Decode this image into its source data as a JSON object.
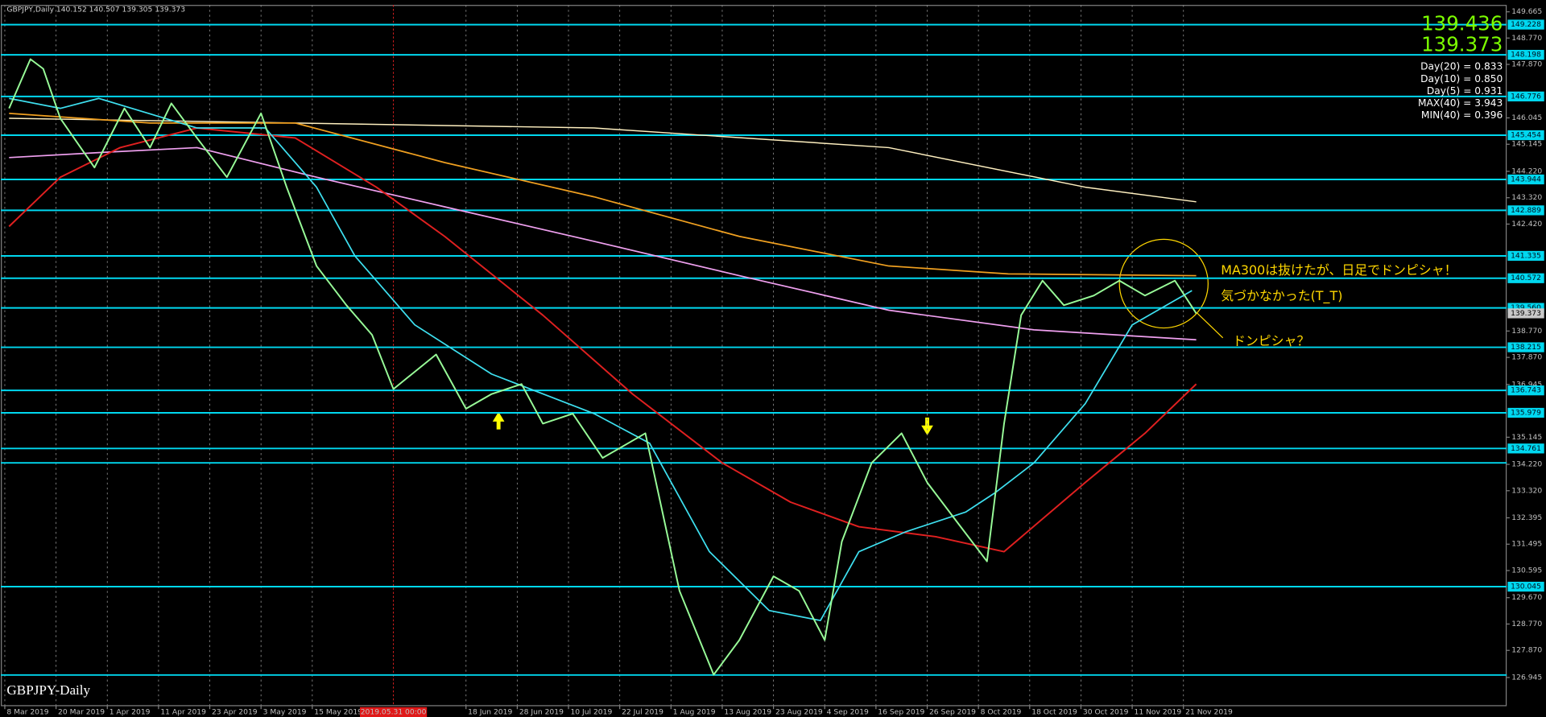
{
  "chart_data": {
    "type": "line",
    "header": "GBPJPY,Daily  140.152 140.507 139.305 139.373",
    "watermark": "GBPJPY-Daily",
    "quotes": [
      139.436,
      139.373
    ],
    "info": [
      "Day(20) = 0.833",
      "Day(10) = 0.850",
      "Day(5) = 0.931",
      "MAX(40) = 3.943",
      "MIN(40) = 0.396"
    ],
    "annotations": [
      "MA300は抜けたが、日足でドンピシャ！",
      "気づかなかった(T_T)",
      "ドンピシャ？"
    ],
    "marker_label": "2019.05.31 00:00",
    "marker_x": 91,
    "grid": true,
    "xlim": [
      0,
      351.7
    ],
    "xticks": [
      {
        "value": 0,
        "label": "8 Mar 2019"
      },
      {
        "value": 12,
        "label": "20 Mar 2019"
      },
      {
        "value": 24,
        "label": "1 Apr 2019"
      },
      {
        "value": 36,
        "label": "11 Apr 2019"
      },
      {
        "value": 48,
        "label": "23 Apr 2019"
      },
      {
        "value": 60,
        "label": "3 May 2019"
      },
      {
        "value": 72,
        "label": "15 May 2019"
      },
      {
        "value": 108,
        "label": "18 Jun 2019"
      },
      {
        "value": 120,
        "label": "28 Jun 2019"
      },
      {
        "value": 132,
        "label": "10 Jul 2019"
      },
      {
        "value": 144,
        "label": "22 Jul 2019"
      },
      {
        "value": 156,
        "label": "1 Aug 2019"
      },
      {
        "value": 168,
        "label": "13 Aug 2019"
      },
      {
        "value": 180,
        "label": "23 Aug 2019"
      },
      {
        "value": 192,
        "label": "4 Sep 2019"
      },
      {
        "value": 204,
        "label": "16 Sep 2019"
      },
      {
        "value": 216,
        "label": "26 Sep 2019"
      },
      {
        "value": 228,
        "label": "8 Oct 2019"
      },
      {
        "value": 240,
        "label": "18 Oct 2019"
      },
      {
        "value": 252,
        "label": "30 Oct 2019"
      },
      {
        "value": 264,
        "label": "11 Nov 2019"
      },
      {
        "value": 276,
        "label": "21 Nov 2019"
      }
    ],
    "ylim": [
      126.0,
      149.9
    ],
    "yticks": [
      126.945,
      {
        "value": 127.87,
        "label": "127.870"
      },
      {
        "value": 128.77,
        "label": "128.770"
      },
      {
        "value": 129.67,
        "label": "129.670"
      },
      130.595,
      131.495,
      132.395,
      {
        "value": 133.32,
        "label": "133.320"
      },
      {
        "value": 134.22,
        "label": "134.220"
      },
      135.145,
      136.945,
      {
        "value": 137.87,
        "label": "137.870"
      },
      {
        "value": 138.77,
        "label": "138.770"
      },
      {
        "value": 142.42,
        "label": "142.420"
      },
      {
        "value": 143.32,
        "label": "143.320"
      },
      {
        "value": 144.22,
        "label": "144.220"
      },
      145.145,
      146.045,
      {
        "value": 147.87,
        "label": "147.870"
      },
      {
        "value": 148.77,
        "label": "148.770"
      },
      149.665
    ],
    "levels": [
      149.228,
      148.198,
      146.776,
      145.454,
      143.944,
      142.889,
      141.335,
      140.572,
      {
        "value": 139.56,
        "label": "139.560"
      },
      138.215,
      136.743,
      135.979,
      134.761,
      130.045
    ],
    "unlabeled_levels": [
      134.27,
      127.03
    ],
    "last_price": 139.373,
    "level_color": "#00d8f0",
    "series": [
      {
        "color": "#98fb98",
        "width": 1.6,
        "x": [
          1,
          6,
          9,
          13,
          21,
          28,
          34,
          39,
          45,
          52,
          60,
          66,
          73,
          80,
          86,
          91,
          101,
          108,
          114,
          121,
          126,
          133,
          140,
          150,
          154,
          158,
          166,
          172,
          180,
          186,
          192,
          196,
          203,
          210,
          216,
          223,
          230,
          234,
          238,
          243,
          248,
          255,
          261,
          267,
          274,
          279
        ],
        "values": [
          146.37,
          148.05,
          147.72,
          146.03,
          144.35,
          146.37,
          145.03,
          146.54,
          145.36,
          144.02,
          146.2,
          143.68,
          140.99,
          139.65,
          138.64,
          136.79,
          137.97,
          136.12,
          136.62,
          136.96,
          135.61,
          135.95,
          134.44,
          135.28,
          132.59,
          129.9,
          127.04,
          128.22,
          130.4,
          129.9,
          128.22,
          131.58,
          134.27,
          135.28,
          133.6,
          132.25,
          130.91,
          135.61,
          139.31,
          140.49,
          139.65,
          139.98,
          140.49,
          139.98,
          140.49,
          139.373
        ]
      },
      {
        "color": "#3ee0f0",
        "width": 1.4,
        "x": [
          1,
          13,
          22,
          45,
          61,
          73,
          82,
          96,
          114,
          138,
          151,
          165,
          179,
          191,
          200,
          211,
          225,
          232,
          241,
          253,
          264,
          278
        ],
        "values": [
          146.71,
          146.37,
          146.71,
          145.7,
          145.7,
          143.68,
          141.33,
          138.98,
          137.3,
          135.95,
          134.94,
          131.24,
          129.23,
          128.89,
          131.24,
          131.92,
          132.59,
          133.26,
          134.27,
          136.29,
          138.98,
          140.15
        ]
      },
      {
        "color": "#e02020",
        "width": 1.6,
        "x": [
          1,
          13,
          27,
          45,
          68,
          87,
          103,
          126,
          147,
          168,
          184,
          200,
          218,
          234,
          253,
          267,
          279
        ],
        "values": [
          142.34,
          144.02,
          145.03,
          145.7,
          145.36,
          143.68,
          142.0,
          139.31,
          136.62,
          134.27,
          132.93,
          132.09,
          131.75,
          131.24,
          133.6,
          135.28,
          136.96
        ]
      },
      {
        "color": "#f0a020",
        "width": 1.4,
        "x": [
          1,
          34,
          68,
          103,
          138,
          172,
          207,
          235,
          279
        ],
        "values": [
          146.2,
          145.87,
          145.87,
          144.52,
          143.35,
          142.0,
          140.99,
          140.72,
          140.66
        ]
      },
      {
        "color": "#f0a0f0",
        "width": 1.4,
        "x": [
          1,
          22,
          45,
          73,
          103,
          138,
          172,
          207,
          241,
          279
        ],
        "values": [
          144.69,
          144.86,
          145.03,
          144.02,
          143.01,
          141.83,
          140.66,
          139.48,
          138.81,
          138.47
        ]
      },
      {
        "color": "#fff0c0",
        "width": 1.2,
        "x": [
          1,
          68,
          138,
          207,
          253,
          279
        ],
        "values": [
          146.03,
          145.87,
          145.7,
          145.03,
          143.68,
          143.18
        ]
      }
    ]
  }
}
